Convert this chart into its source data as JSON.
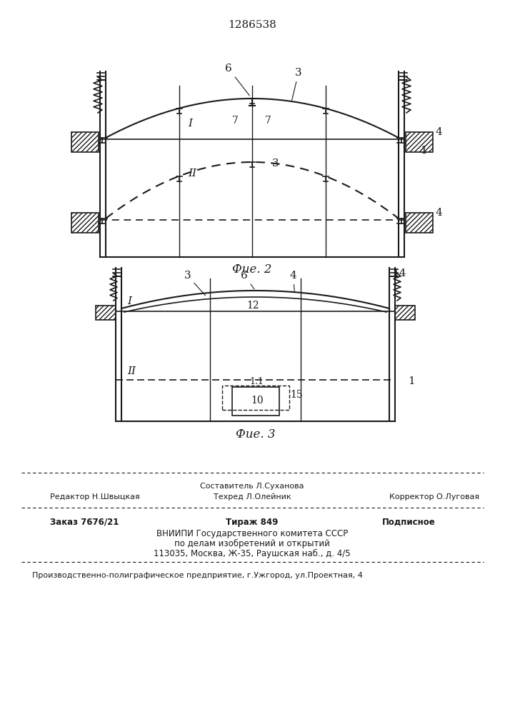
{
  "patent_number": "1286538",
  "fig2_caption": "Фие. 2",
  "fig3_caption": "Фие. 3",
  "line_color": "#1a1a1a",
  "text_color": "#1a1a1a",
  "footer_line1_left": "Редактор Н.Швыцкая",
  "footer_line1_center": "Составитель Л.Суханова",
  "footer_line1_right": "Корректор О.Луговая",
  "footer_line2_center": "Техред Л.Олейник",
  "footer_order": "Заказ 7676/21",
  "footer_tirage": "Тираж 849",
  "footer_podpisnoe": "Подписное",
  "footer_vnipi": "ВНИИПИ Государственного комитета СССР",
  "footer_po_delam": "по делам изобретений и открытий",
  "footer_address": "113035, Москва, Ж-35, Раушская наб., д. 4/5",
  "footer_poligraf": "Производственно-полиграфическое предприятие, г.Ужгород, ул.Проектная, 4"
}
